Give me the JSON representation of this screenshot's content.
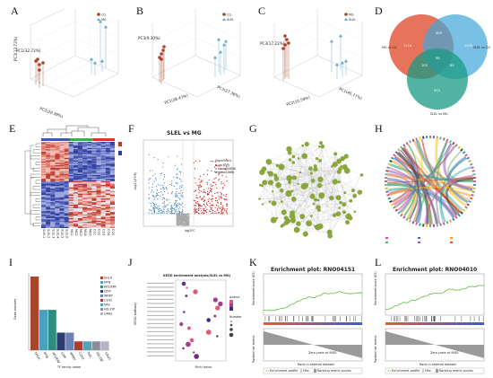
{
  "labels": {
    "A": "A",
    "B": "B",
    "C": "C",
    "D": "D",
    "E": "E",
    "F": "F",
    "G": "G",
    "H": "H",
    "I": "I",
    "J": "J",
    "K": "K",
    "L": "L"
  },
  "colors": {
    "group1": "#a8452b",
    "group2": "#5ba3c7",
    "venn_red": "#e45b3f",
    "venn_blue": "#3fa6d8",
    "venn_green": "#1a9a84",
    "volcano_up": "#c8201e",
    "volcano_down": "#4c87c3",
    "volcano_ns": "#a8a8a8",
    "node": "#8aa83a",
    "es_line": "#5cbf3a"
  },
  "pca": [
    {
      "id": "A",
      "legend": [
        "CG",
        "MG"
      ],
      "axis1": "PC1(32.72%)",
      "axis2": "PC2(20.39%)",
      "axis3": "PC3(13.72%)"
    },
    {
      "id": "B",
      "legend": [
        "CG",
        "SLEL"
      ],
      "axis1": "PC1(38.47%)",
      "axis2": "PC2(27.38%)",
      "axis3": "PC3(9.30%)"
    },
    {
      "id": "C",
      "legend": [
        "MG",
        "SLEL"
      ],
      "axis1": "PC1(45.77%)",
      "axis2": "PC2(10.59%)",
      "axis3": "PC3(17.22%)"
    }
  ],
  "venn": {
    "sets": [
      "MG vs CG",
      "SLEL vs CG",
      "SLEL vs MG"
    ],
    "counts": {
      "r": "1116",
      "rb": "409",
      "b": "1925",
      "rg": "105",
      "center": "58",
      "bg": "89",
      "g": "470"
    }
  },
  "heatmap": {
    "cols": [
      "SLEL1",
      "SLEL2",
      "SLEL3",
      "SLEL4",
      "SLEL5",
      "SLEL6",
      "MG1",
      "MG2",
      "MG3",
      "MG4",
      "MG5",
      "CG1",
      "CG2",
      "CG3",
      "CG4",
      "CG5"
    ]
  },
  "volcano": {
    "title": "SLEL vs MG",
    "xlabel": "log2FC",
    "ylabel": "-log10(FDR)",
    "legend_title": "Significant",
    "legend": [
      "up(859)",
      "nosig(8808)",
      "down(868)"
    ]
  },
  "bars_I": {
    "ylabel": "Gene number",
    "xlabel": "TF family name",
    "legend": [
      "bHLH",
      "MYB",
      "AP2/ERF",
      "bZIP",
      "WRKY",
      "C2H2",
      "NAC",
      "HD-ZIP",
      "GRAS"
    ],
    "values": [
      42,
      23,
      23,
      10,
      10,
      5,
      5,
      5,
      5
    ],
    "colors": [
      "#a8452b",
      "#4aa0c0",
      "#2f8d7d",
      "#2c3c6e",
      "#6a82b7",
      "#b03a2e",
      "#4fa4be",
      "#8c8e9a",
      "#b7b1c2"
    ]
  },
  "kegg": {
    "title": "KEGG enrichment analysis(SLEL vs MG)",
    "xlabel": "Rich factor",
    "ylabel": "KEGG pathway",
    "legend_q": "qvalue",
    "legend_n": "Number"
  },
  "gsea": [
    {
      "id": "K",
      "title": "Enrichment plot: RNO04151",
      "ylabel1": "Enrichment score (ES)",
      "ylabel2": "Ranked list metric",
      "xlabel": "Rank in ordered dataset",
      "legend": [
        "Enrichment profile",
        "Hits",
        "Ranking metric scores"
      ],
      "zero": "Zero cross at 9581"
    },
    {
      "id": "L",
      "title": "Enrichment plot: RNO04010",
      "ylabel1": "Enrichment score (ES)",
      "ylabel2": "Ranked list metric",
      "xlabel": "Rank in ordered dataset",
      "legend": [
        "Enrichment profile",
        "Hits",
        "Ranking metric scores"
      ],
      "zero": "Zero cross at 9581"
    }
  ]
}
